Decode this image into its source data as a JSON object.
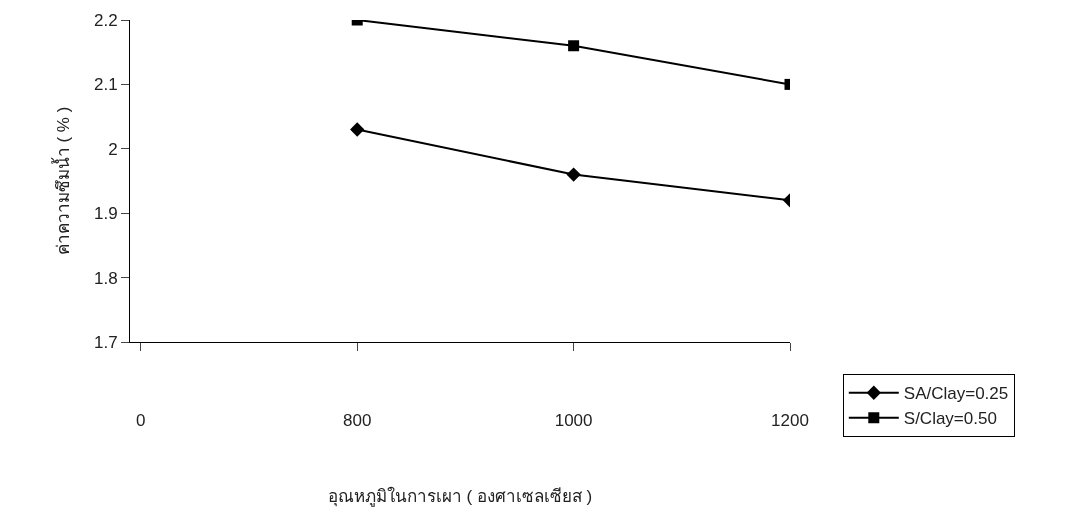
{
  "chart_data": {
    "type": "line",
    "xlabel": "อุณหภูมิในการเผา ( องศาเซลเซียส )",
    "ylabel": "ค่าความซึมน้ำ ( % )",
    "categories": [
      "0",
      "800",
      "1000",
      "1200"
    ],
    "series": [
      {
        "name": "SA/Clay=0.25",
        "color": "#000000",
        "marker": "diamond",
        "values": [
          null,
          2.03,
          1.96,
          1.92
        ]
      },
      {
        "name": "S/Clay=0.50",
        "color": "#000000",
        "marker": "square",
        "values": [
          null,
          2.2,
          2.16,
          2.1
        ]
      }
    ],
    "ylim": [
      1.7,
      2.2
    ],
    "yticks": [
      1.7,
      1.8,
      1.9,
      2,
      2.1,
      2.2
    ],
    "grid": false,
    "legend": "bottom right",
    "line_style": "solid"
  }
}
